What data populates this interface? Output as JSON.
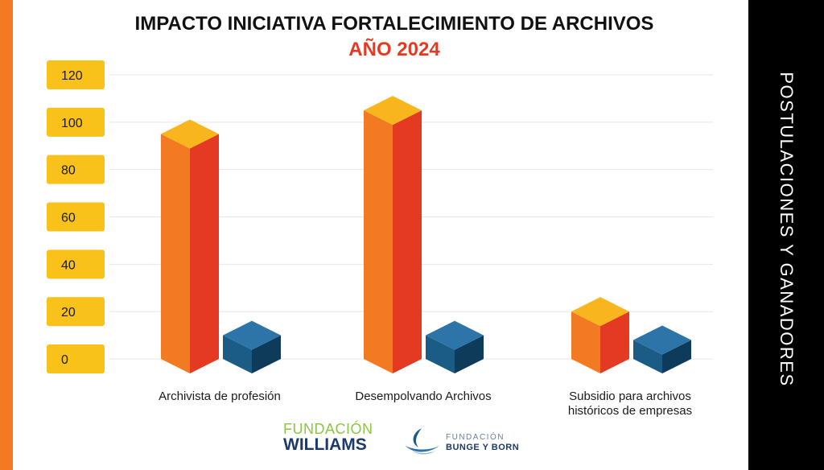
{
  "page": {
    "side_title": "POSTULACIONES Y GANADORES",
    "accent_orange": "#f27a22",
    "panel_color": "#000000"
  },
  "chart_data": {
    "type": "bar",
    "title": "IMPACTO INICIATIVA FORTALECIMIENTO DE ARCHIVOS",
    "subtitle": "AÑO 2024",
    "categories": [
      "Archivista de profesión",
      "Desempolvando Archivos",
      "Subsidio para archivos históricos de empresas"
    ],
    "series": [
      {
        "values": [
          95,
          105,
          20
        ],
        "colors": {
          "front": "#f27a22",
          "side": "#e53a22",
          "top": "#f8b51d"
        }
      },
      {
        "values": [
          10,
          10,
          8
        ],
        "colors": {
          "front": "#1b5c87",
          "side": "#0f3b5a",
          "top": "#2d75a8"
        }
      }
    ],
    "yticks": [
      0,
      20,
      40,
      60,
      80,
      100,
      120
    ],
    "ylim": [
      0,
      120
    ],
    "tick_badge_color": "#f8c21a",
    "grid": true
  },
  "logos": {
    "williams": {
      "line1": "FUNDACIÓN",
      "line2": "WILLIAMS"
    },
    "bunge": {
      "line1": "FUNDACIÓN",
      "line2": "BUNGE Y BORN"
    }
  }
}
